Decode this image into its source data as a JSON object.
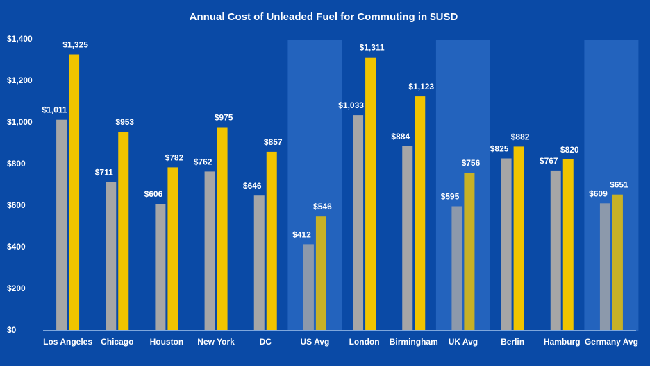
{
  "chart_data": {
    "type": "bar",
    "title": "Annual Cost of Unleaded Fuel for Commuting in $USD",
    "xlabel": "",
    "ylabel": "",
    "ylim": [
      0,
      1400
    ],
    "y_ticks": [
      "$0",
      "$200",
      "$400",
      "$600",
      "$800",
      "$1,000",
      "$1,200",
      "$1,400"
    ],
    "grid": false,
    "legend": "none",
    "categories": [
      "Los Angeles",
      "Chicago",
      "Houston",
      "New York",
      "DC",
      "US Avg",
      "London",
      "Birmingham",
      "UK Avg",
      "Berlin",
      "Hamburg",
      "Germany Avg"
    ],
    "highlighted_categories": [
      "US Avg",
      "UK Avg",
      "Germany Avg"
    ],
    "series": [
      {
        "values": [
          1011,
          711,
          606,
          762,
          646,
          412,
          1033,
          884,
          595,
          825,
          767,
          609
        ],
        "labels": [
          "$1,011",
          "$711",
          "$606",
          "$762",
          "$646",
          "$412",
          "$1,033",
          "$884",
          "$595",
          "$825",
          "$767",
          "$609"
        ],
        "color": "#a6a6a6"
      },
      {
        "values": [
          1325,
          953,
          782,
          975,
          857,
          546,
          1311,
          1123,
          756,
          882,
          820,
          651
        ],
        "labels": [
          "$1,325",
          "$953",
          "$782",
          "$975",
          "$857",
          "$546",
          "$1,311",
          "$1,123",
          "$756",
          "$882",
          "$820",
          "$651"
        ],
        "color": "#f0c400"
      }
    ],
    "colors": {
      "background": "#0a4aa6",
      "highlight_band": "#2c6cc4",
      "axis": "#7fa7dc",
      "text": "#ffffff"
    }
  }
}
